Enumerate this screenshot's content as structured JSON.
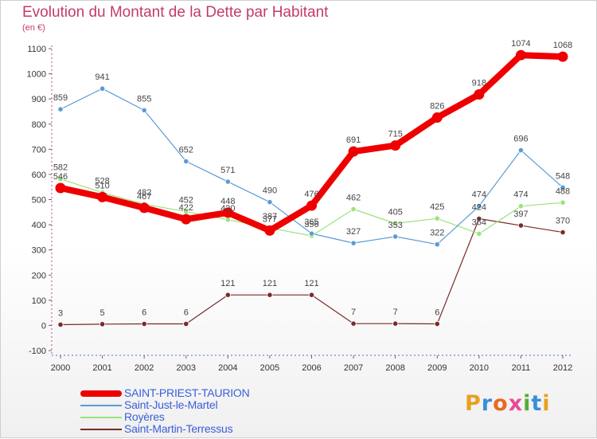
{
  "chart_data": {
    "type": "line",
    "title": "Evolution du Montant de la Dette par Habitant",
    "unit_label": "(en €)",
    "x": [
      "2000",
      "2001",
      "2002",
      "2003",
      "2004",
      "2005",
      "2006",
      "2007",
      "2008",
      "2009",
      "2010",
      "2011",
      "2012"
    ],
    "ylim": [
      -100,
      1100
    ],
    "y_ticks": [
      -100,
      0,
      100,
      200,
      300,
      400,
      500,
      600,
      700,
      800,
      900,
      1000,
      1100
    ],
    "grid": false,
    "legend_position": "bottom-left",
    "series": [
      {
        "name": "SAINT-PRIEST-TAURION",
        "color": "#ee0000",
        "values": [
          546,
          510,
          467,
          422,
          448,
          377,
          476,
          691,
          715,
          826,
          918,
          1074,
          1068
        ]
      },
      {
        "name": "Saint-Just-le-Martel",
        "color": "#5b9bd5",
        "values": [
          859,
          941,
          855,
          652,
          571,
          490,
          365,
          327,
          353,
          322,
          474,
          696,
          548
        ]
      },
      {
        "name": "Royères",
        "color": "#9be37a",
        "values": [
          582,
          528,
          482,
          452,
          420,
          387,
          356,
          462,
          405,
          425,
          364,
          474,
          488
        ]
      },
      {
        "name": "Saint-Martin-Terressus",
        "color": "#7a2a2a",
        "values": [
          3,
          5,
          6,
          6,
          121,
          121,
          121,
          7,
          7,
          6,
          424,
          397,
          370
        ]
      }
    ]
  },
  "logo": {
    "letters": [
      "P",
      "r",
      "o",
      "x",
      "i",
      "t",
      "i"
    ],
    "colors": [
      "#e8a020",
      "#3a8ed8",
      "#e86a20",
      "#e84a9a",
      "#5aaa3a",
      "#3a8ed8",
      "#e8a020"
    ]
  }
}
